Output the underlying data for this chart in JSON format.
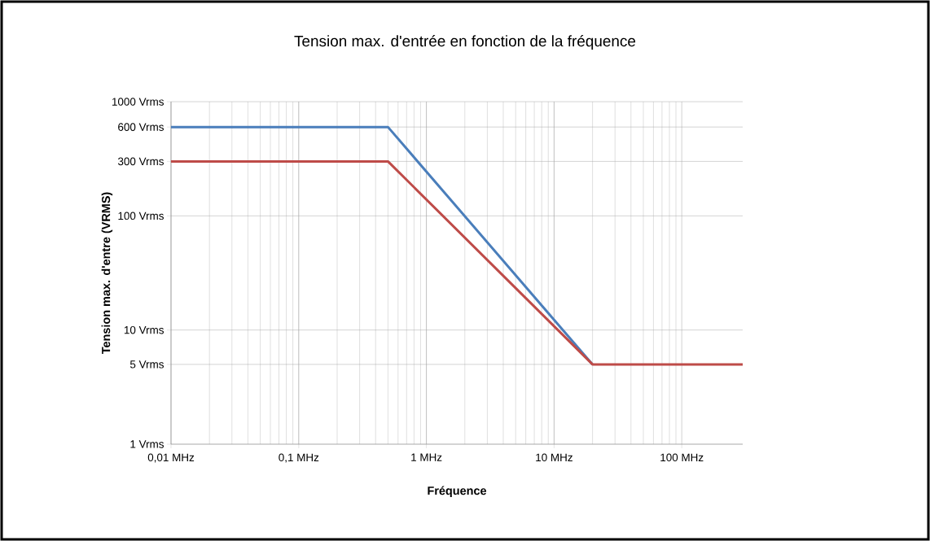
{
  "chart_data": {
    "type": "line",
    "title": "Tension max. d'entrée en fonction de la fréquence",
    "xlabel": "Fréquence",
    "ylabel": "Tension max. d'entre (VRMS)",
    "log": "xy",
    "grid": true,
    "xlim": [
      0.01,
      300
    ],
    "ylim": [
      1,
      1000
    ],
    "xticks": [
      {
        "value": 0.01,
        "label": "0,01 MHz"
      },
      {
        "value": 0.1,
        "label": "0,1 MHz"
      },
      {
        "value": 1,
        "label": "1 MHz"
      },
      {
        "value": 10,
        "label": "10 MHz"
      },
      {
        "value": 100,
        "label": "100 MHz"
      }
    ],
    "yticks": [
      {
        "value": 1,
        "label": "1 Vrms"
      },
      {
        "value": 5,
        "label": "5 Vrms"
      },
      {
        "value": 10,
        "label": "10 Vrms"
      },
      {
        "value": 100,
        "label": "100 Vrms"
      },
      {
        "value": 300,
        "label": "300 Vrms"
      },
      {
        "value": 600,
        "label": "600 Vrms"
      },
      {
        "value": 1000,
        "label": "1000 Vrms"
      }
    ],
    "series": [
      {
        "color": "#4a7ebb",
        "x": [
          0.01,
          0.5,
          20
        ],
        "values": [
          600,
          600,
          5
        ]
      },
      {
        "color": "#be4b48",
        "x": [
          0.01,
          0.5,
          20,
          300
        ],
        "values": [
          300,
          300,
          5,
          5
        ]
      }
    ]
  }
}
